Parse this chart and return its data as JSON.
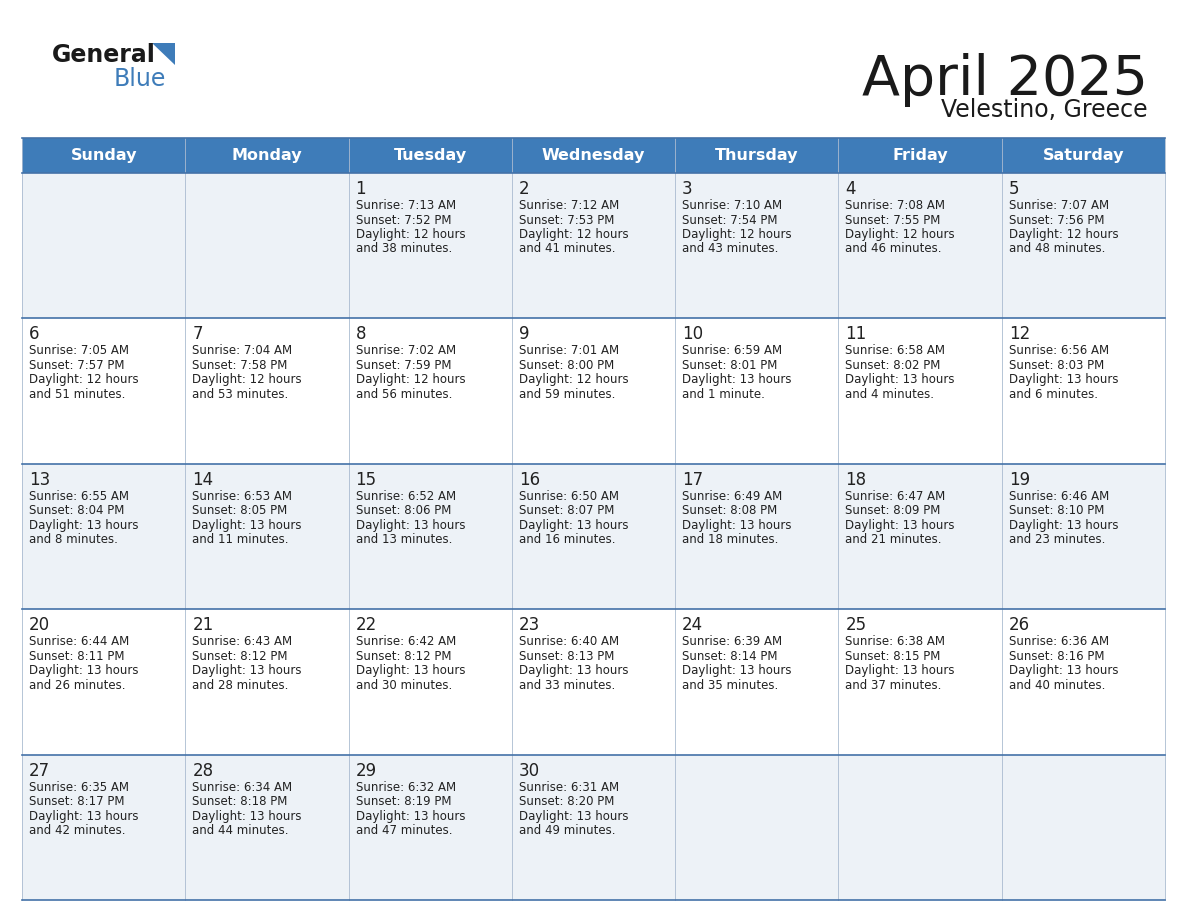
{
  "title": "April 2025",
  "subtitle": "Velestino, Greece",
  "header_bg_color": "#3e7cb9",
  "header_text_color": "#ffffff",
  "cell_bg_odd": "#edf2f7",
  "cell_bg_even": "#ffffff",
  "line_color": "#4472a8",
  "text_color": "#222222",
  "days_of_week": [
    "Sunday",
    "Monday",
    "Tuesday",
    "Wednesday",
    "Thursday",
    "Friday",
    "Saturday"
  ],
  "weeks": [
    [
      {
        "day": "",
        "sunrise": "",
        "sunset": "",
        "daylight": ""
      },
      {
        "day": "",
        "sunrise": "",
        "sunset": "",
        "daylight": ""
      },
      {
        "day": "1",
        "sunrise": "Sunrise: 7:13 AM",
        "sunset": "Sunset: 7:52 PM",
        "daylight": "Daylight: 12 hours\nand 38 minutes."
      },
      {
        "day": "2",
        "sunrise": "Sunrise: 7:12 AM",
        "sunset": "Sunset: 7:53 PM",
        "daylight": "Daylight: 12 hours\nand 41 minutes."
      },
      {
        "day": "3",
        "sunrise": "Sunrise: 7:10 AM",
        "sunset": "Sunset: 7:54 PM",
        "daylight": "Daylight: 12 hours\nand 43 minutes."
      },
      {
        "day": "4",
        "sunrise": "Sunrise: 7:08 AM",
        "sunset": "Sunset: 7:55 PM",
        "daylight": "Daylight: 12 hours\nand 46 minutes."
      },
      {
        "day": "5",
        "sunrise": "Sunrise: 7:07 AM",
        "sunset": "Sunset: 7:56 PM",
        "daylight": "Daylight: 12 hours\nand 48 minutes."
      }
    ],
    [
      {
        "day": "6",
        "sunrise": "Sunrise: 7:05 AM",
        "sunset": "Sunset: 7:57 PM",
        "daylight": "Daylight: 12 hours\nand 51 minutes."
      },
      {
        "day": "7",
        "sunrise": "Sunrise: 7:04 AM",
        "sunset": "Sunset: 7:58 PM",
        "daylight": "Daylight: 12 hours\nand 53 minutes."
      },
      {
        "day": "8",
        "sunrise": "Sunrise: 7:02 AM",
        "sunset": "Sunset: 7:59 PM",
        "daylight": "Daylight: 12 hours\nand 56 minutes."
      },
      {
        "day": "9",
        "sunrise": "Sunrise: 7:01 AM",
        "sunset": "Sunset: 8:00 PM",
        "daylight": "Daylight: 12 hours\nand 59 minutes."
      },
      {
        "day": "10",
        "sunrise": "Sunrise: 6:59 AM",
        "sunset": "Sunset: 8:01 PM",
        "daylight": "Daylight: 13 hours\nand 1 minute."
      },
      {
        "day": "11",
        "sunrise": "Sunrise: 6:58 AM",
        "sunset": "Sunset: 8:02 PM",
        "daylight": "Daylight: 13 hours\nand 4 minutes."
      },
      {
        "day": "12",
        "sunrise": "Sunrise: 6:56 AM",
        "sunset": "Sunset: 8:03 PM",
        "daylight": "Daylight: 13 hours\nand 6 minutes."
      }
    ],
    [
      {
        "day": "13",
        "sunrise": "Sunrise: 6:55 AM",
        "sunset": "Sunset: 8:04 PM",
        "daylight": "Daylight: 13 hours\nand 8 minutes."
      },
      {
        "day": "14",
        "sunrise": "Sunrise: 6:53 AM",
        "sunset": "Sunset: 8:05 PM",
        "daylight": "Daylight: 13 hours\nand 11 minutes."
      },
      {
        "day": "15",
        "sunrise": "Sunrise: 6:52 AM",
        "sunset": "Sunset: 8:06 PM",
        "daylight": "Daylight: 13 hours\nand 13 minutes."
      },
      {
        "day": "16",
        "sunrise": "Sunrise: 6:50 AM",
        "sunset": "Sunset: 8:07 PM",
        "daylight": "Daylight: 13 hours\nand 16 minutes."
      },
      {
        "day": "17",
        "sunrise": "Sunrise: 6:49 AM",
        "sunset": "Sunset: 8:08 PM",
        "daylight": "Daylight: 13 hours\nand 18 minutes."
      },
      {
        "day": "18",
        "sunrise": "Sunrise: 6:47 AM",
        "sunset": "Sunset: 8:09 PM",
        "daylight": "Daylight: 13 hours\nand 21 minutes."
      },
      {
        "day": "19",
        "sunrise": "Sunrise: 6:46 AM",
        "sunset": "Sunset: 8:10 PM",
        "daylight": "Daylight: 13 hours\nand 23 minutes."
      }
    ],
    [
      {
        "day": "20",
        "sunrise": "Sunrise: 6:44 AM",
        "sunset": "Sunset: 8:11 PM",
        "daylight": "Daylight: 13 hours\nand 26 minutes."
      },
      {
        "day": "21",
        "sunrise": "Sunrise: 6:43 AM",
        "sunset": "Sunset: 8:12 PM",
        "daylight": "Daylight: 13 hours\nand 28 minutes."
      },
      {
        "day": "22",
        "sunrise": "Sunrise: 6:42 AM",
        "sunset": "Sunset: 8:12 PM",
        "daylight": "Daylight: 13 hours\nand 30 minutes."
      },
      {
        "day": "23",
        "sunrise": "Sunrise: 6:40 AM",
        "sunset": "Sunset: 8:13 PM",
        "daylight": "Daylight: 13 hours\nand 33 minutes."
      },
      {
        "day": "24",
        "sunrise": "Sunrise: 6:39 AM",
        "sunset": "Sunset: 8:14 PM",
        "daylight": "Daylight: 13 hours\nand 35 minutes."
      },
      {
        "day": "25",
        "sunrise": "Sunrise: 6:38 AM",
        "sunset": "Sunset: 8:15 PM",
        "daylight": "Daylight: 13 hours\nand 37 minutes."
      },
      {
        "day": "26",
        "sunrise": "Sunrise: 6:36 AM",
        "sunset": "Sunset: 8:16 PM",
        "daylight": "Daylight: 13 hours\nand 40 minutes."
      }
    ],
    [
      {
        "day": "27",
        "sunrise": "Sunrise: 6:35 AM",
        "sunset": "Sunset: 8:17 PM",
        "daylight": "Daylight: 13 hours\nand 42 minutes."
      },
      {
        "day": "28",
        "sunrise": "Sunrise: 6:34 AM",
        "sunset": "Sunset: 8:18 PM",
        "daylight": "Daylight: 13 hours\nand 44 minutes."
      },
      {
        "day": "29",
        "sunrise": "Sunrise: 6:32 AM",
        "sunset": "Sunset: 8:19 PM",
        "daylight": "Daylight: 13 hours\nand 47 minutes."
      },
      {
        "day": "30",
        "sunrise": "Sunrise: 6:31 AM",
        "sunset": "Sunset: 8:20 PM",
        "daylight": "Daylight: 13 hours\nand 49 minutes."
      },
      {
        "day": "",
        "sunrise": "",
        "sunset": "",
        "daylight": ""
      },
      {
        "day": "",
        "sunrise": "",
        "sunset": "",
        "daylight": ""
      },
      {
        "day": "",
        "sunrise": "",
        "sunset": "",
        "daylight": ""
      }
    ]
  ]
}
